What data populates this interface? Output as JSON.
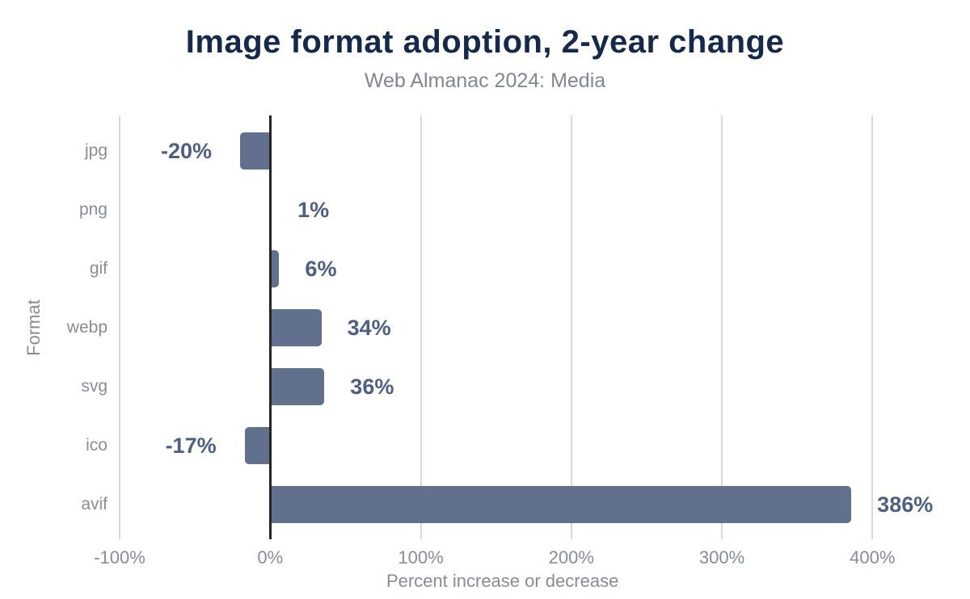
{
  "title": "Image format adoption, 2-year change",
  "subtitle": "Web Almanac 2024: Media",
  "colors": {
    "background": "#ffffff",
    "bar": "#61708d",
    "title_text": "#14294b",
    "subtitle_text": "#82878f",
    "axis_text": "#878d95",
    "data_label_text": "#4d5f86",
    "gridline": "#d9d9d9",
    "zero_line": "#252525"
  },
  "chart_data": {
    "type": "bar",
    "orientation": "horizontal",
    "title": "Image format adoption, 2-year change",
    "subtitle": "Web Almanac 2024: Media",
    "xlabel": "Percent increase or decrease",
    "ylabel": "Format",
    "categories": [
      "jpg",
      "png",
      "gif",
      "webp",
      "svg",
      "ico",
      "avif"
    ],
    "values": [
      -20,
      1,
      6,
      34,
      36,
      -17,
      386
    ],
    "value_labels": [
      "-20%",
      "1%",
      "6%",
      "34%",
      "36%",
      "-17%",
      "386%"
    ],
    "xlim": [
      -100,
      460
    ],
    "xticks": [
      -100,
      0,
      100,
      200,
      300,
      400
    ],
    "xtick_labels": [
      "-100%",
      "0%",
      "100%",
      "200%",
      "300%",
      "400%"
    ],
    "grid": true,
    "legend": false
  }
}
